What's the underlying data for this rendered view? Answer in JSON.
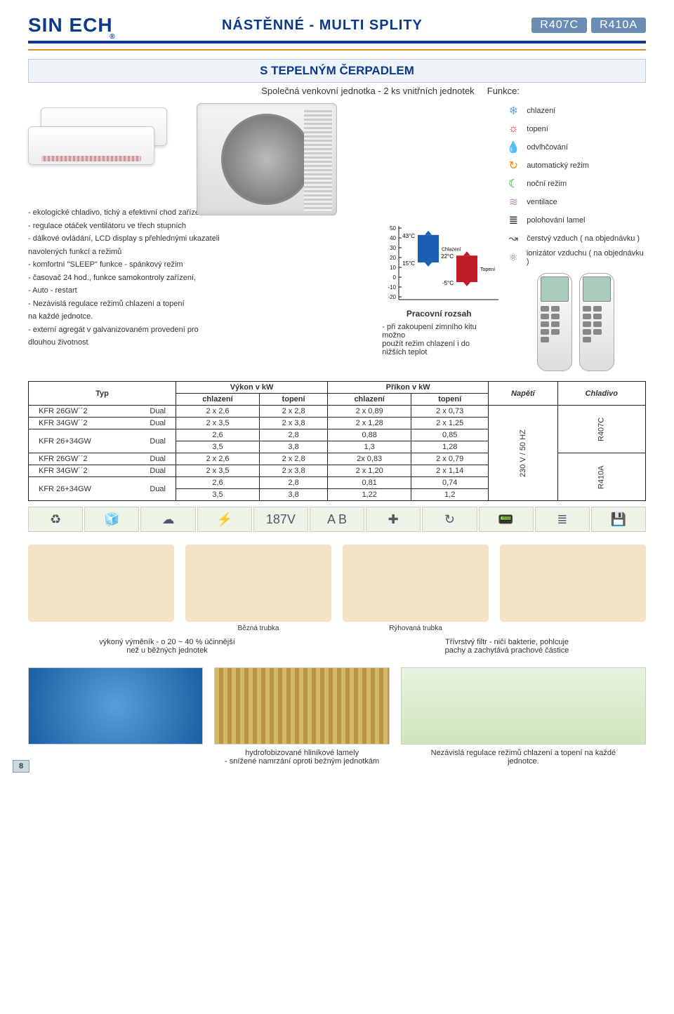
{
  "header": {
    "logo_text": "SIN  ECH",
    "title": "NÁSTĚNNÉ - MULTI SPLITY",
    "badge1": "R407C",
    "badge2": "R410A"
  },
  "subhead": "S TEPELNÝM ČERPADLEM",
  "subdesc": "Společná venkovní jednotka - 2  ks vnitřních jednotek",
  "funkce_label": "Funkce:",
  "funclist": [
    {
      "label": "chlazení",
      "icon": "❄",
      "color": "#5aa7d6"
    },
    {
      "label": "topení",
      "icon": "☼",
      "color": "#d23"
    },
    {
      "label": "odvlhčování",
      "icon": "💧",
      "color": "#6c4"
    },
    {
      "label": "automatický režim",
      "icon": "↻",
      "color": "#e80"
    },
    {
      "label": "noční režim",
      "icon": "☾",
      "color": "#0a0"
    },
    {
      "label": "ventilace",
      "icon": "≋",
      "color": "#b8b"
    },
    {
      "label": "polohování lamel",
      "icon": "≣",
      "color": "#333"
    },
    {
      "label": "čerstvý vzduch ( na objednávku )",
      "icon": "↝",
      "color": "#555"
    },
    {
      "label": "ionizátor vzduchu ( na objednávku )",
      "icon": "⚛",
      "color": "#888"
    }
  ],
  "features": [
    "- ekologické chladivo, tichý a efektivní chod zařízení",
    "- regulace otáček ventilátoru ve třech stupních",
    "- dálkové ovládání, LCD display s přehlednými ukazateli",
    "  navolených funkcí a režimů",
    "- komfortní \"SLEEP\" funkce - spánkový režim",
    "- časovač 24 hod., funkce samokontroly zařízení,",
    "-  Auto - restart",
    "- Nezávislá regulace režimů chlazení a topení",
    "  na každé jednotce.",
    "- externí agregát v galvanizovaném provedení pro",
    "  dlouhou životnost"
  ],
  "chart": {
    "type": "range-bar",
    "title": "Pracovní rozsah",
    "ylim": [
      -20,
      50
    ],
    "ytick_step": 10,
    "yticks": [
      "50",
      "40",
      "30",
      "20",
      "10",
      "0",
      "-10",
      "-20"
    ],
    "series": [
      {
        "name": "Chlazení",
        "low_label": "15°C",
        "high_label": "43°C",
        "low": 15,
        "high": 43,
        "color": "#1a5fb4"
      },
      {
        "name": "Topení",
        "low_label": "-5°C",
        "high_label": "22°C",
        "low": -5,
        "high": 22,
        "color": "#c01c28"
      }
    ],
    "axis_color": "#111",
    "bg": "#ffffff",
    "note": "- při zakoupení zimního kitu možno\n  použít režim chlazení i do nižších teplot"
  },
  "table": {
    "head_typ": "Typ",
    "head_vykon": "Výkon v kW",
    "head_prikon": "Příkon v kW",
    "sub_chl": "chlazení",
    "sub_top": "topení",
    "diag_napeti": "Napětí",
    "diag_chladivo": "Chladivo",
    "volt": "230 V / 50 HZ",
    "chl1": "R407C",
    "chl2": "R410A",
    "rows": [
      {
        "typ": "KFR 26GW´´2",
        "cfg": "Dual",
        "vc": "2 x 2,6",
        "vt": "2 x 2,8",
        "pc": "2 x 0,89",
        "pt": "2 x 0,73"
      },
      {
        "typ": "KFR 34GW´´2",
        "cfg": "Dual",
        "vc": "2 x 3,5",
        "vt": "2 x 3,8",
        "pc": "2 x 1,28",
        "pt": "2 x 1,25"
      },
      {
        "typ": "KFR 26+34GW",
        "cfg": "Dual",
        "vc": "2,6",
        "vt": "2,8",
        "pc": "0,88",
        "pt": "0,85"
      },
      {
        "typ": "",
        "cfg": "",
        "vc": "3,5",
        "vt": "3,8",
        "pc": "1,3",
        "pt": "1,28"
      },
      {
        "typ": "KFR 26GW´´2",
        "cfg": "Dual",
        "vc": "2 x 2,6",
        "vt": "2 x 2,8",
        "pc": "2x 0,83",
        "pt": "2 x 0,79"
      },
      {
        "typ": "KFR 34GW´´2",
        "cfg": "Dual",
        "vc": "2 x 3,5",
        "vt": "2 x 3,8",
        "pc": "2 x 1,20",
        "pt": "2 x 1,14"
      },
      {
        "typ": "KFR 26+34GW",
        "cfg": "Dual",
        "vc": "2,6",
        "vt": "2,8",
        "pc": "0,81",
        "pt": "0,74"
      },
      {
        "typ": "",
        "cfg": "",
        "vc": "3,5",
        "vt": "3,8",
        "pc": "1,22",
        "pt": "1,2"
      }
    ]
  },
  "tube_labels": {
    "bezna": "Bězná trubka",
    "ryh": "Rýhovaná trubka"
  },
  "footer": {
    "heat_ex": "výkoný výměník - o 20 ~ 40 % účinnější\nnež u běžných jednotek",
    "filter": "Třívrstvý filtr - ničí bakterie, pohlcuje\npachy a zachytává prachové částice",
    "lamely": "hydrofobizované hliníkové lamely\n- snížené namrzání oproti bežným jednotkám",
    "indep": "Nezávislá regulace režimů chlazení a topení na každé\njednotce."
  },
  "page_number": "8"
}
